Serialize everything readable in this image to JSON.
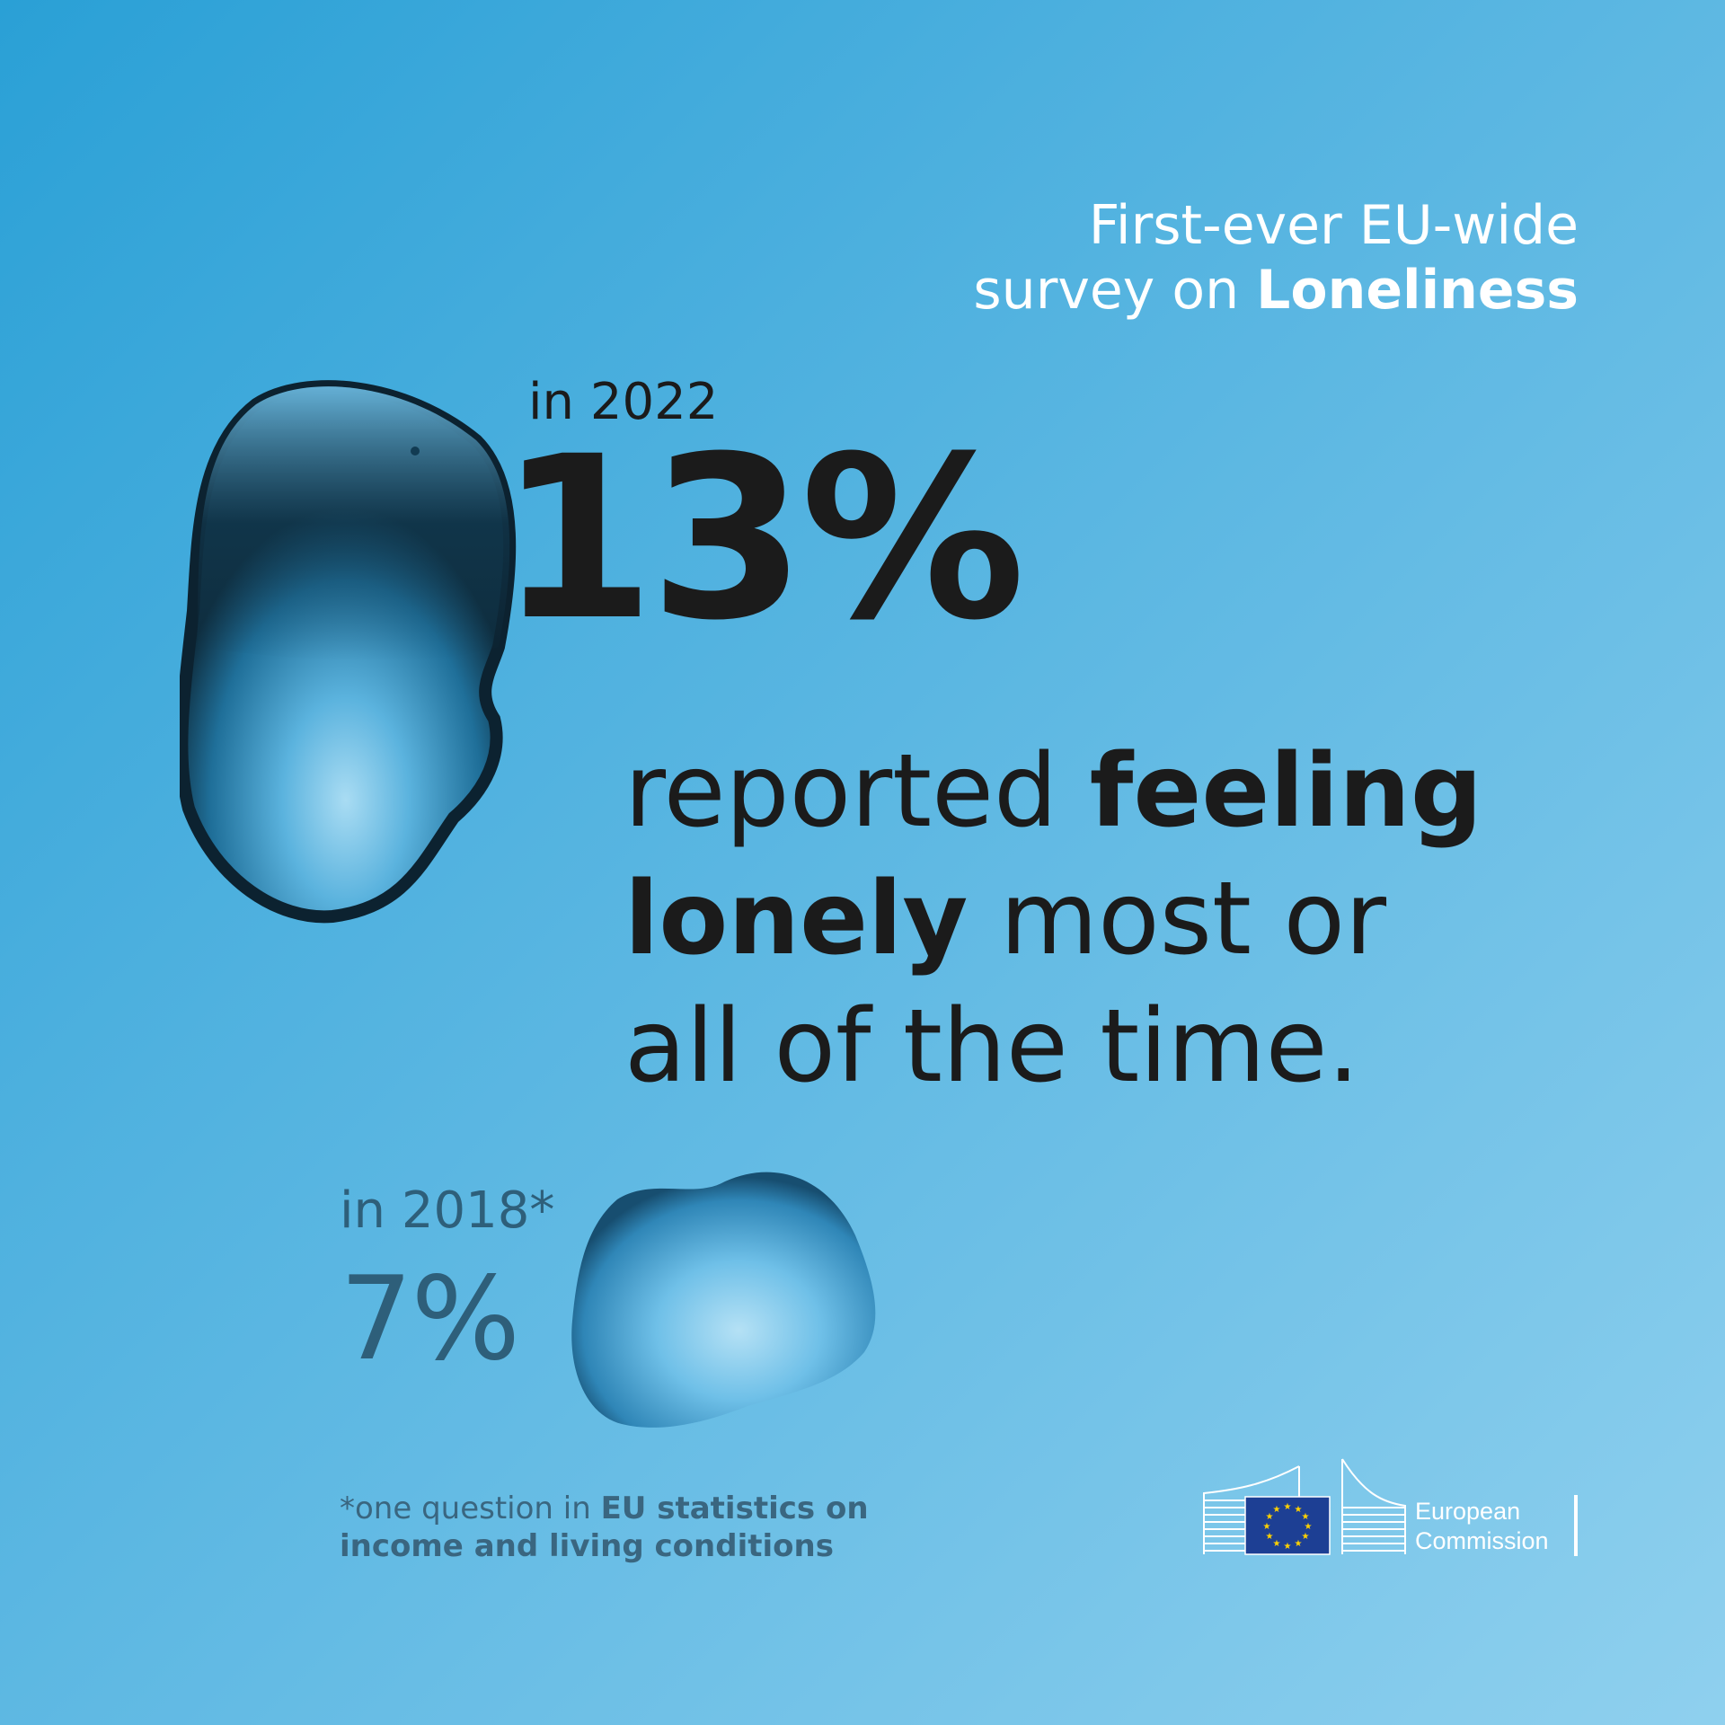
{
  "header": {
    "line1": "First-ever EU-wide",
    "line2_prefix": "survey on ",
    "line2_bold": "Loneliness"
  },
  "main": {
    "year_label": "in 2022",
    "value": "13%",
    "statement": {
      "part1": "reported ",
      "bold1": "feeling",
      "bold2": "lonely",
      "part2": " most or",
      "part3": "all of the time."
    }
  },
  "previous": {
    "year_label": "in 2018*",
    "value": "7%"
  },
  "footnote": {
    "prefix": "*one question in ",
    "bold_line1": "EU statistics on",
    "bold_line2": "income and living conditions"
  },
  "logo": {
    "line1": "European",
    "line2": "Commission"
  },
  "colors": {
    "background_start": "#2aa0d6",
    "background_end": "#8fd0ee",
    "text_dark": "#1b1b1b",
    "text_muted": "#2e5f7a",
    "eu_flag_blue": "#1d3f94",
    "eu_star_yellow": "#ffd200"
  }
}
